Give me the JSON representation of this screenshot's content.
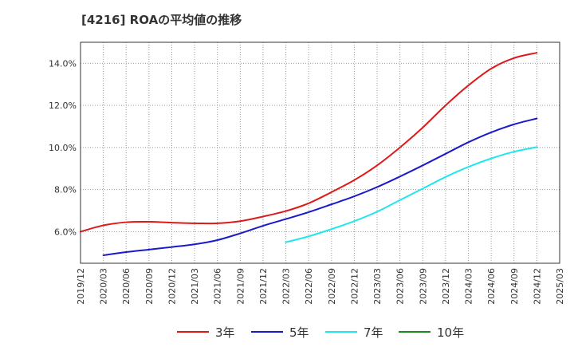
{
  "title": "[4216]  ROAの平均値の推移",
  "chart_data": {
    "type": "line",
    "title": "[4216]  ROAの平均値の推移",
    "xlabel": "",
    "ylabel": "",
    "x_ticks": [
      "2019/12",
      "2020/03",
      "2020/06",
      "2020/09",
      "2020/12",
      "2021/03",
      "2021/06",
      "2021/09",
      "2021/12",
      "2022/03",
      "2022/06",
      "2022/09",
      "2022/12",
      "2023/03",
      "2023/06",
      "2023/09",
      "2023/12",
      "2024/03",
      "2024/06",
      "2024/09",
      "2024/12",
      "2025/03"
    ],
    "y_ticks": [
      6.0,
      8.0,
      10.0,
      12.0,
      14.0
    ],
    "y_tick_format": "%",
    "ylim": [
      4.5,
      15.0
    ],
    "grid": true,
    "legend_position": "bottom",
    "series": [
      {
        "name": "3年",
        "color": "#dd1a1a",
        "x": [
          "2019/12",
          "2020/03",
          "2020/06",
          "2020/09",
          "2020/12",
          "2021/03",
          "2021/06",
          "2021/09",
          "2021/12",
          "2022/03",
          "2022/06",
          "2022/09",
          "2022/12",
          "2023/03",
          "2023/06",
          "2023/09",
          "2023/12",
          "2024/03",
          "2024/06",
          "2024/09",
          "2024/12"
        ],
        "values": [
          6.0,
          6.3,
          6.45,
          6.47,
          6.43,
          6.4,
          6.4,
          6.5,
          6.72,
          6.98,
          7.35,
          7.88,
          8.45,
          9.15,
          10.0,
          10.95,
          12.0,
          12.95,
          13.75,
          14.25,
          14.5
        ]
      },
      {
        "name": "5年",
        "color": "#1a1acc",
        "x": [
          "2020/03",
          "2020/06",
          "2020/09",
          "2020/12",
          "2021/03",
          "2021/06",
          "2021/09",
          "2021/12",
          "2022/03",
          "2022/06",
          "2022/09",
          "2022/12",
          "2023/03",
          "2023/06",
          "2023/09",
          "2023/12",
          "2024/03",
          "2024/06",
          "2024/09",
          "2024/12"
        ],
        "values": [
          4.88,
          5.03,
          5.15,
          5.27,
          5.4,
          5.6,
          5.92,
          6.28,
          6.6,
          6.93,
          7.3,
          7.68,
          8.12,
          8.62,
          9.15,
          9.7,
          10.25,
          10.72,
          11.1,
          11.38
        ]
      },
      {
        "name": "7年",
        "color": "#22e6ee",
        "x": [
          "2022/03",
          "2022/06",
          "2022/09",
          "2022/12",
          "2023/03",
          "2023/06",
          "2023/09",
          "2023/12",
          "2024/03",
          "2024/06",
          "2024/09",
          "2024/12"
        ],
        "values": [
          5.5,
          5.78,
          6.12,
          6.5,
          6.95,
          7.5,
          8.05,
          8.6,
          9.08,
          9.48,
          9.8,
          10.02
        ]
      },
      {
        "name": "10年",
        "color": "#1a8a1a",
        "x": [],
        "values": []
      }
    ]
  },
  "legend": {
    "items": [
      {
        "label": "3年",
        "color": "#dd1a1a"
      },
      {
        "label": "5年",
        "color": "#1a1acc"
      },
      {
        "label": "7年",
        "color": "#22e6ee"
      },
      {
        "label": "10年",
        "color": "#1a8a1a"
      }
    ]
  }
}
